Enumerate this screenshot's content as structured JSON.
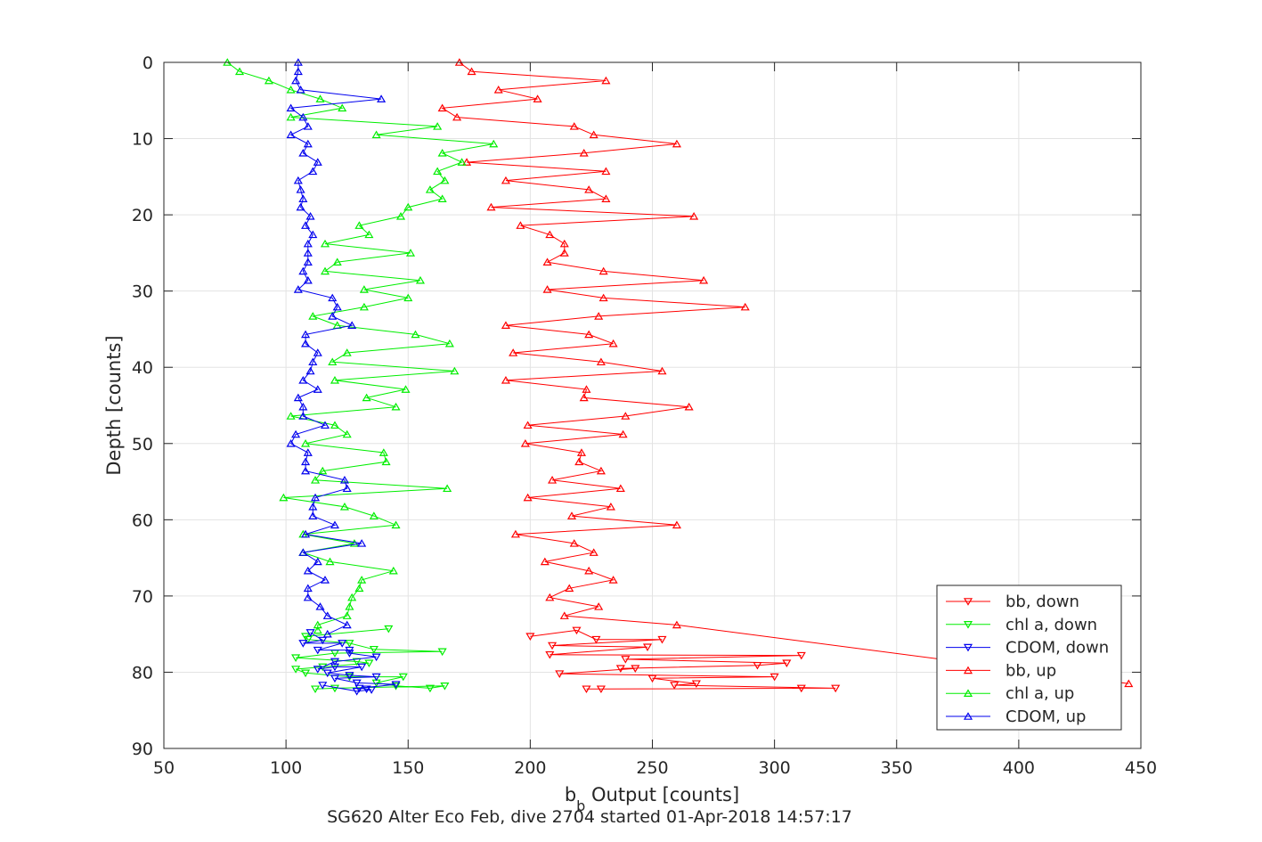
{
  "chart_data": {
    "type": "line",
    "xlabel": "b",
    "xlabel_sub": "b",
    "xlabel_rest": " Output [counts]",
    "ylabel": "Depth [counts]",
    "caption": "SG620 Alter Eco Feb, dive 2704 started 01-Apr-2018 14:57:17",
    "xlim": [
      50,
      450
    ],
    "ylim": [
      0,
      90
    ],
    "y_reversed": true,
    "grid": true,
    "legend_position": "bottom-right",
    "xticks": [
      "50",
      "100",
      "150",
      "200",
      "250",
      "300",
      "350",
      "400",
      "450"
    ],
    "yticks": [
      "0",
      "10",
      "20",
      "30",
      "40",
      "50",
      "60",
      "70",
      "80",
      "90"
    ],
    "series": [
      {
        "name": "bb, down",
        "color": "#ff0000",
        "marker": "triangle-down",
        "points": [
          [
            200,
            75.3
          ],
          [
            219,
            74.5
          ],
          [
            227,
            75.7
          ],
          [
            254,
            75.7
          ],
          [
            209,
            76.5
          ],
          [
            248,
            76.7
          ],
          [
            208,
            77.7
          ],
          [
            311,
            77.8
          ],
          [
            239,
            78.3
          ],
          [
            305,
            78.8
          ],
          [
            293,
            79.1
          ],
          [
            237,
            79.5
          ],
          [
            243,
            79.5
          ],
          [
            212,
            80.2
          ],
          [
            300,
            80.6
          ],
          [
            250,
            80.8
          ],
          [
            268,
            81.5
          ],
          [
            259,
            81.7
          ],
          [
            325,
            82.1
          ],
          [
            311,
            82.1
          ],
          [
            229,
            82.2
          ],
          [
            223,
            82.2
          ]
        ]
      },
      {
        "name": "chl a, down",
        "color": "#00ee00",
        "marker": "triangle-down",
        "points": [
          [
            142,
            74.3
          ],
          [
            108,
            75.3
          ],
          [
            109,
            75.7
          ],
          [
            126,
            76.2
          ],
          [
            136,
            77.0
          ],
          [
            164,
            77.3
          ],
          [
            120,
            77.5
          ],
          [
            104,
            78.1
          ],
          [
            129,
            78.6
          ],
          [
            134,
            78.8
          ],
          [
            115,
            79.3
          ],
          [
            104,
            79.6
          ],
          [
            108,
            80.1
          ],
          [
            126,
            80.6
          ],
          [
            148,
            80.6
          ],
          [
            137,
            81.4
          ],
          [
            145,
            81.8
          ],
          [
            159,
            82.1
          ],
          [
            165,
            81.8
          ],
          [
            120,
            82.1
          ],
          [
            112,
            82.2
          ]
        ]
      },
      {
        "name": "CDOM, down",
        "color": "#0000ee",
        "marker": "triangle-down",
        "points": [
          [
            110,
            74.8
          ],
          [
            115,
            75.8
          ],
          [
            107,
            76.2
          ],
          [
            123,
            76.2
          ],
          [
            113,
            77.1
          ],
          [
            126,
            77.1
          ],
          [
            126,
            77.5
          ],
          [
            137,
            78.0
          ],
          [
            120,
            78.6
          ],
          [
            113,
            79.6
          ],
          [
            120,
            79.3
          ],
          [
            131,
            79.3
          ],
          [
            117,
            80.1
          ],
          [
            126,
            80.4
          ],
          [
            137,
            80.6
          ],
          [
            120,
            80.8
          ],
          [
            129,
            81.4
          ],
          [
            145,
            81.6
          ],
          [
            130,
            82.1
          ],
          [
            133,
            82.2
          ],
          [
            135,
            82.3
          ],
          [
            129,
            82.5
          ],
          [
            115,
            81.7
          ]
        ]
      },
      {
        "name": "bb, up",
        "color": "#ff0000",
        "marker": "triangle-up",
        "points": [
          [
            171,
            0
          ],
          [
            176,
            1.2
          ],
          [
            231,
            2.4
          ],
          [
            187,
            3.6
          ],
          [
            203,
            4.8
          ],
          [
            164,
            6.0
          ],
          [
            170,
            7.2
          ],
          [
            218,
            8.4
          ],
          [
            226,
            9.5
          ],
          [
            260,
            10.7
          ],
          [
            222,
            11.9
          ],
          [
            174,
            13.1
          ],
          [
            231,
            14.3
          ],
          [
            190,
            15.5
          ],
          [
            224,
            16.7
          ],
          [
            231,
            17.9
          ],
          [
            184,
            19.0
          ],
          [
            267,
            20.2
          ],
          [
            196,
            21.4
          ],
          [
            208,
            22.6
          ],
          [
            214,
            23.8
          ],
          [
            214,
            25.0
          ],
          [
            207,
            26.2
          ],
          [
            230,
            27.4
          ],
          [
            271,
            28.6
          ],
          [
            207,
            29.8
          ],
          [
            230,
            30.9
          ],
          [
            288,
            32.1
          ],
          [
            228,
            33.3
          ],
          [
            190,
            34.5
          ],
          [
            224,
            35.7
          ],
          [
            234,
            36.9
          ],
          [
            193,
            38.1
          ],
          [
            229,
            39.3
          ],
          [
            254,
            40.5
          ],
          [
            190,
            41.7
          ],
          [
            223,
            42.9
          ],
          [
            222,
            44.0
          ],
          [
            265,
            45.2
          ],
          [
            239,
            46.4
          ],
          [
            199,
            47.6
          ],
          [
            238,
            48.8
          ],
          [
            198,
            50.0
          ],
          [
            221,
            51.2
          ],
          [
            220,
            52.4
          ],
          [
            229,
            53.6
          ],
          [
            209,
            54.8
          ],
          [
            237,
            55.9
          ],
          [
            199,
            57.1
          ],
          [
            233,
            58.3
          ],
          [
            217,
            59.5
          ],
          [
            260,
            60.7
          ],
          [
            194,
            61.9
          ],
          [
            218,
            63.1
          ],
          [
            226,
            64.3
          ],
          [
            206,
            65.5
          ],
          [
            224,
            66.7
          ],
          [
            234,
            67.9
          ],
          [
            216,
            69.0
          ],
          [
            208,
            70.2
          ],
          [
            228,
            71.4
          ],
          [
            214,
            72.6
          ],
          [
            260,
            73.8
          ],
          [
            445,
            81.5
          ]
        ]
      },
      {
        "name": "chl a, up",
        "color": "#00ee00",
        "marker": "triangle-up",
        "points": [
          [
            76,
            0
          ],
          [
            81,
            1.2
          ],
          [
            93,
            2.4
          ],
          [
            102,
            3.6
          ],
          [
            114,
            4.8
          ],
          [
            123,
            6.0
          ],
          [
            102,
            7.2
          ],
          [
            162,
            8.4
          ],
          [
            137,
            9.5
          ],
          [
            185,
            10.7
          ],
          [
            164,
            11.9
          ],
          [
            172,
            13.1
          ],
          [
            162,
            14.3
          ],
          [
            165,
            15.5
          ],
          [
            159,
            16.7
          ],
          [
            164,
            17.9
          ],
          [
            150,
            19.0
          ],
          [
            147,
            20.2
          ],
          [
            130,
            21.4
          ],
          [
            134,
            22.6
          ],
          [
            116,
            23.8
          ],
          [
            151,
            25.0
          ],
          [
            121,
            26.2
          ],
          [
            116,
            27.4
          ],
          [
            155,
            28.6
          ],
          [
            132,
            29.8
          ],
          [
            150,
            30.9
          ],
          [
            132,
            32.1
          ],
          [
            111,
            33.3
          ],
          [
            121,
            34.5
          ],
          [
            153,
            35.7
          ],
          [
            167,
            36.9
          ],
          [
            125,
            38.1
          ],
          [
            119,
            39.3
          ],
          [
            169,
            40.5
          ],
          [
            120,
            41.7
          ],
          [
            149,
            42.9
          ],
          [
            133,
            44.0
          ],
          [
            145,
            45.2
          ],
          [
            102,
            46.4
          ],
          [
            120,
            47.6
          ],
          [
            125,
            48.8
          ],
          [
            108,
            50.0
          ],
          [
            140,
            51.2
          ],
          [
            141,
            52.4
          ],
          [
            115,
            53.6
          ],
          [
            112,
            54.8
          ],
          [
            166,
            55.9
          ],
          [
            99,
            57.1
          ],
          [
            124,
            58.3
          ],
          [
            136,
            59.5
          ],
          [
            145,
            60.7
          ],
          [
            107,
            61.9
          ],
          [
            128,
            63.1
          ],
          [
            107,
            64.3
          ],
          [
            118,
            65.5
          ],
          [
            144,
            66.7
          ],
          [
            131,
            67.9
          ],
          [
            130,
            69.0
          ],
          [
            127,
            70.2
          ],
          [
            126,
            71.4
          ],
          [
            125,
            72.6
          ],
          [
            113,
            73.8
          ],
          [
            113,
            74.5
          ]
        ]
      },
      {
        "name": "CDOM, up",
        "color": "#0000ee",
        "marker": "triangle-up",
        "points": [
          [
            105,
            0
          ],
          [
            105,
            1.2
          ],
          [
            104,
            2.4
          ],
          [
            106,
            3.6
          ],
          [
            139,
            4.8
          ],
          [
            102,
            6.0
          ],
          [
            107,
            7.2
          ],
          [
            109,
            8.4
          ],
          [
            102,
            9.5
          ],
          [
            109,
            10.7
          ],
          [
            107,
            11.9
          ],
          [
            113,
            13.1
          ],
          [
            111,
            14.3
          ],
          [
            105,
            15.5
          ],
          [
            106,
            16.7
          ],
          [
            107,
            17.9
          ],
          [
            106,
            19.0
          ],
          [
            110,
            20.2
          ],
          [
            108,
            21.4
          ],
          [
            111,
            22.6
          ],
          [
            109,
            23.8
          ],
          [
            109,
            25.0
          ],
          [
            109,
            26.2
          ],
          [
            107,
            27.4
          ],
          [
            109,
            28.6
          ],
          [
            105,
            29.8
          ],
          [
            119,
            30.9
          ],
          [
            121,
            32.1
          ],
          [
            119,
            33.3
          ],
          [
            127,
            34.5
          ],
          [
            108,
            35.7
          ],
          [
            108,
            36.9
          ],
          [
            113,
            38.1
          ],
          [
            111,
            39.3
          ],
          [
            110,
            40.5
          ],
          [
            107,
            41.7
          ],
          [
            113,
            42.9
          ],
          [
            105,
            44.0
          ],
          [
            107,
            45.2
          ],
          [
            107,
            46.4
          ],
          [
            116,
            47.6
          ],
          [
            104,
            48.8
          ],
          [
            102,
            50.0
          ],
          [
            109,
            51.2
          ],
          [
            108,
            52.4
          ],
          [
            108,
            53.6
          ],
          [
            124,
            54.8
          ],
          [
            125,
            55.9
          ],
          [
            112,
            57.1
          ],
          [
            111,
            58.3
          ],
          [
            111,
            59.5
          ],
          [
            120,
            60.7
          ],
          [
            108,
            61.9
          ],
          [
            131,
            63.1
          ],
          [
            107,
            64.3
          ],
          [
            113,
            65.5
          ],
          [
            109,
            66.7
          ],
          [
            116,
            67.9
          ],
          [
            109,
            69.0
          ],
          [
            109,
            70.2
          ],
          [
            114,
            71.4
          ],
          [
            117,
            72.6
          ],
          [
            125,
            73.8
          ],
          [
            117,
            75.0
          ]
        ]
      }
    ]
  }
}
